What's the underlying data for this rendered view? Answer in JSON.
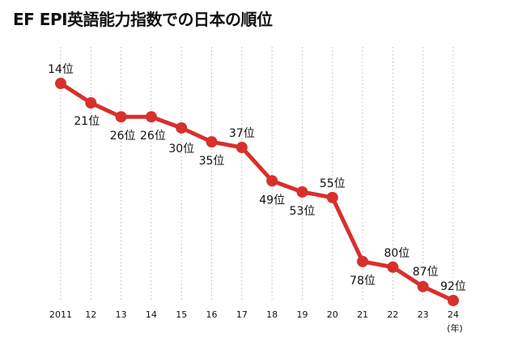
{
  "chart_data": {
    "type": "line",
    "title": "EF EPI英語能力指数での日本の順位",
    "xlabel": "(年)",
    "ylabel": "",
    "categories": [
      "2011",
      "12",
      "13",
      "14",
      "15",
      "16",
      "17",
      "18",
      "19",
      "20",
      "21",
      "22",
      "23",
      "24"
    ],
    "values": [
      14,
      21,
      26,
      26,
      30,
      35,
      37,
      49,
      53,
      55,
      78,
      80,
      87,
      92
    ],
    "data_labels": [
      "14位",
      "21位",
      "26位",
      "26位",
      "30位",
      "35位",
      "37位",
      "49位",
      "53位",
      "55位",
      "78位",
      "80位",
      "87位",
      "92位"
    ],
    "ylim": [
      14,
      92
    ],
    "y_reversed": true,
    "grid": "vertical dotted",
    "color": "#d8302d"
  }
}
